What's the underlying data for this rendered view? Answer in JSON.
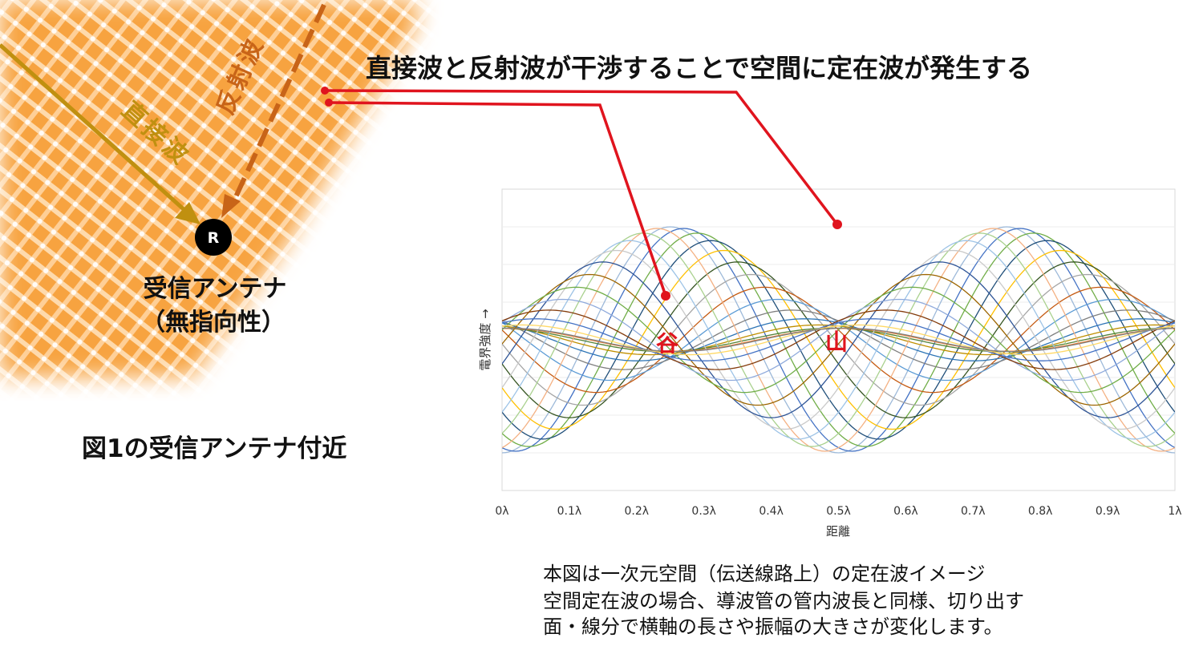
{
  "headline": "直接波と反射波が干渉することで空間に定在波が発生する",
  "wave_labels": {
    "direct": "直接波",
    "reflected": "反射波"
  },
  "antenna": {
    "symbol": "R",
    "label_line1": "受信アンテナ",
    "label_line2": "（無指向性）"
  },
  "figure_caption": "図1の受信アンテナ付近",
  "markers": {
    "valley": "谷",
    "peak": "山"
  },
  "notes": [
    "本図は一次元空間（伝送線路上）の定在波イメージ",
    "空間定在波の場合、導波管の管内波長と同様、切り出す",
    "面・線分で横軸の長さや振幅の大きさが変化します。"
  ],
  "colors": {
    "accent_red": "#e0141e",
    "direct_wave": "#c09010",
    "reflected_wave": "#c86418",
    "antenna_dot": "#000000"
  },
  "chart_data": {
    "type": "line",
    "xlabel": "距離",
    "ylabel": "電界強度 →",
    "x_ticks": [
      "0λ",
      "0.1λ",
      "0.2λ",
      "0.3λ",
      "0.4λ",
      "0.5λ",
      "0.6λ",
      "0.7λ",
      "0.8λ",
      "0.9λ",
      "1λ"
    ],
    "xlim": [
      0,
      1
    ],
    "grid": true,
    "curve_model": "y = -A * cos(4π(x - d)), A = 0.55 + 0.45*cos(4π d) (normalized units)",
    "series": [
      {
        "d": 0.0,
        "color": "#9db9d9"
      },
      {
        "d": 0.02,
        "color": "#4472c4"
      },
      {
        "d": 0.04,
        "color": "#70ad47"
      },
      {
        "d": 0.06,
        "color": "#1f4e79"
      },
      {
        "d": 0.08,
        "color": "#ffc000"
      },
      {
        "d": 0.1,
        "color": "#375623"
      },
      {
        "d": 0.12,
        "color": "#a5a5a5"
      },
      {
        "d": 0.14,
        "color": "#c55a11"
      },
      {
        "d": 0.16,
        "color": "#5b9bd5"
      },
      {
        "d": 0.18,
        "color": "#7f7f7f"
      },
      {
        "d": 0.2,
        "color": "#2e75b6"
      },
      {
        "d": 0.22,
        "color": "#bf8f00"
      },
      {
        "d": 0.24,
        "color": "#548235"
      },
      {
        "d": 0.255,
        "color": "#ed7d31"
      },
      {
        "d": -0.02,
        "color": "#f4b183"
      },
      {
        "d": -0.04,
        "color": "#a9d18e"
      },
      {
        "d": -0.06,
        "color": "#9dc3e6"
      },
      {
        "d": -0.08,
        "color": "#c9c9c9"
      },
      {
        "d": -0.1,
        "color": "#2f5597"
      },
      {
        "d": -0.12,
        "color": "#9c6500"
      },
      {
        "d": -0.14,
        "color": "#70ad47"
      },
      {
        "d": -0.16,
        "color": "#8faadc"
      },
      {
        "d": -0.18,
        "color": "#843c0c"
      },
      {
        "d": -0.2,
        "color": "#4472c4"
      },
      {
        "d": -0.22,
        "color": "#ffd966"
      },
      {
        "d": -0.24,
        "color": "#808080"
      }
    ]
  }
}
